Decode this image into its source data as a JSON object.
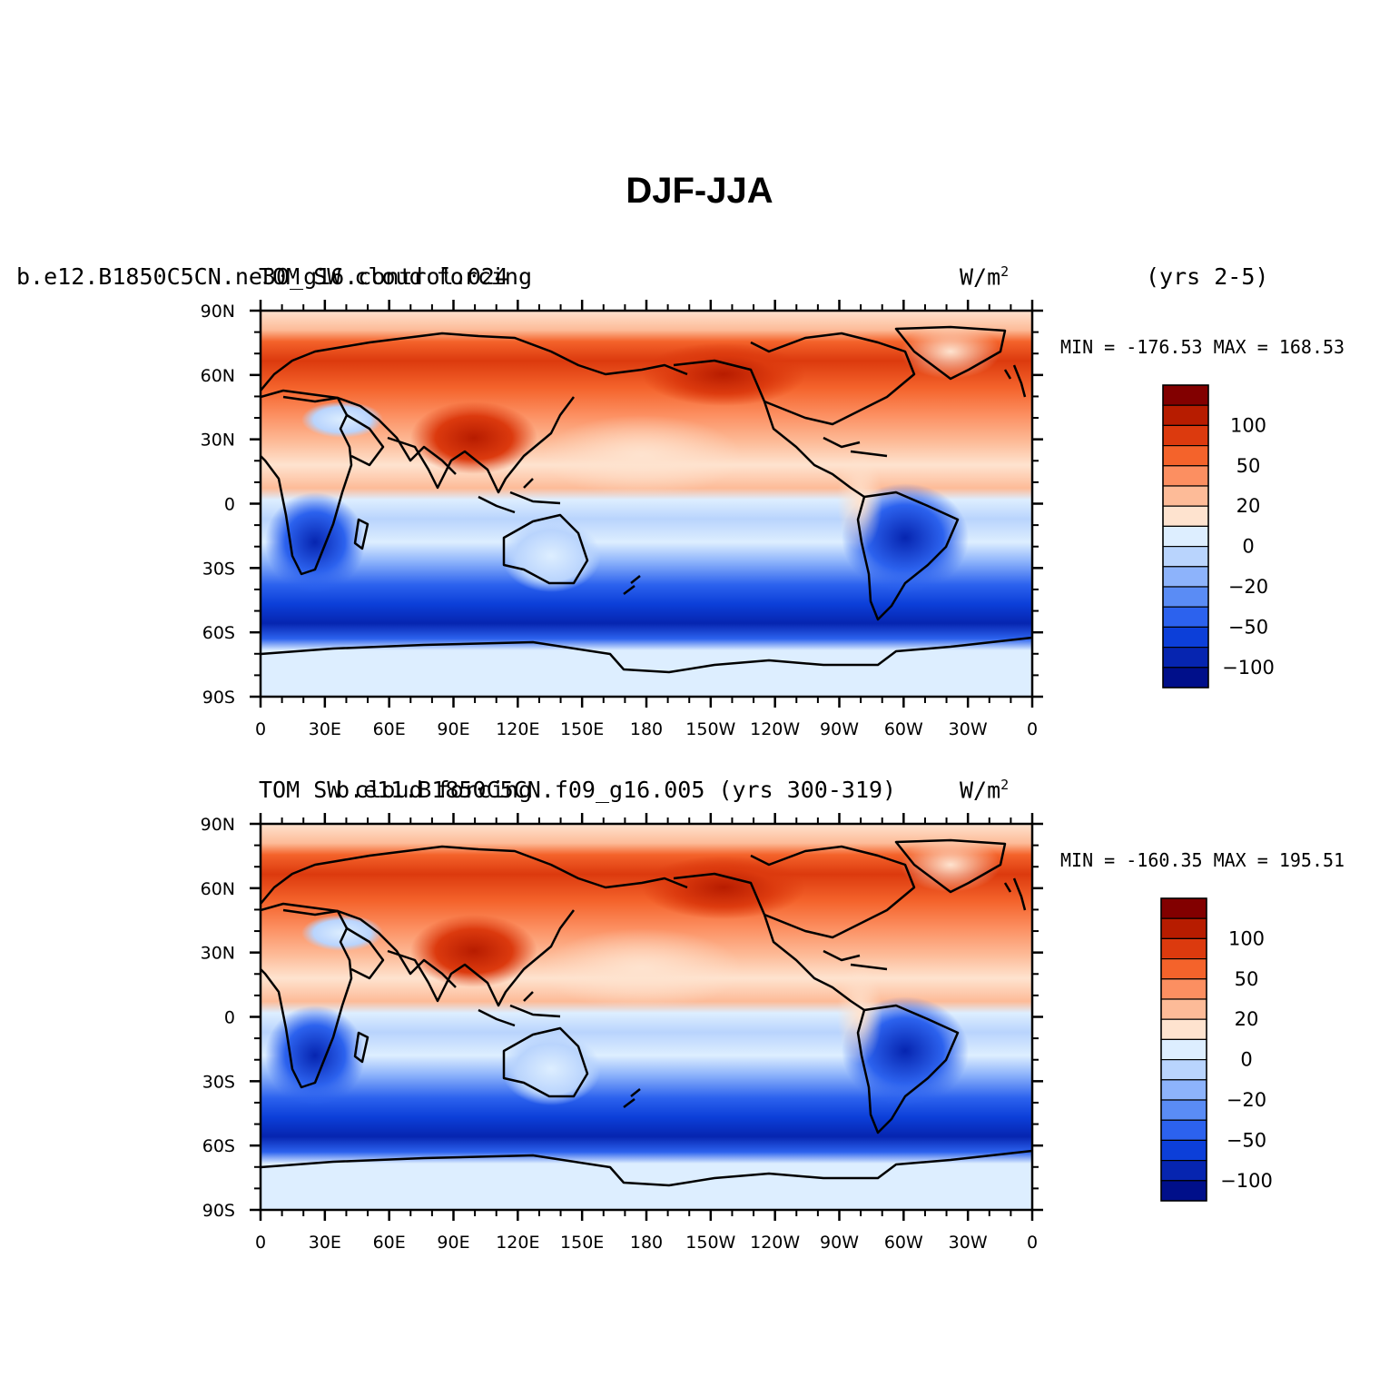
{
  "title": "DJF-JJA",
  "panels": [
    {
      "left_title": "b.e12.B1850C5CN.ne30_g16.control.024",
      "center_title": "TOM SW cloud forcing",
      "units": "W/m",
      "units_sup": "2",
      "years": "(yrs 2-5)",
      "stats": "MIN = -176.53  MAX = 168.53",
      "min": -176.53,
      "max": 168.53
    },
    {
      "left_title": "b.e11.B1850C5CN.f09_g16.005 (yrs 300-319)",
      "center_title": "TOM SW cloud forcing",
      "units": "W/m",
      "units_sup": "2",
      "years": "",
      "stats": "MIN = -160.35  MAX = 195.51",
      "min": -160.35,
      "max": 195.51
    }
  ],
  "map": {
    "lat_ticks": [
      "90N",
      "60N",
      "30N",
      "0",
      "30S",
      "60S",
      "90S"
    ],
    "lon_ticks": [
      "0",
      "30E",
      "60E",
      "90E",
      "120E",
      "150E",
      "180",
      "150W",
      "120W",
      "90W",
      "60W",
      "30W",
      "0"
    ]
  },
  "colorbar": {
    "colors": [
      "#820000",
      "#b71c00",
      "#dc3a0e",
      "#f4632b",
      "#fc8f61",
      "#fdbb98",
      "#fee3cf",
      "#ddeeff",
      "#b9d4fd",
      "#8db3fb",
      "#5a8cf5",
      "#2c62ee",
      "#0c3fd9",
      "#0625b0",
      "#000f8a"
    ],
    "labels": [
      "100",
      "50",
      "20",
      "0",
      "−20",
      "−50",
      "−100"
    ]
  },
  "chart_data": {
    "type": "heatmap",
    "title": "DJF-JJA",
    "variable": "TOM SW cloud forcing",
    "units": "W/m2",
    "x": [
      "0",
      "30E",
      "60E",
      "90E",
      "120E",
      "150E",
      "180",
      "150W",
      "120W",
      "90W",
      "60W",
      "30W",
      "0"
    ],
    "y": [
      "90N",
      "60N",
      "30N",
      "0",
      "30S",
      "60S",
      "90S"
    ],
    "levels": [
      -150,
      -125,
      -100,
      -75,
      -50,
      -35,
      -20,
      -10,
      0,
      10,
      20,
      35,
      50,
      75,
      100,
      125,
      150
    ],
    "panels": [
      {
        "case": "b.e12.B1850C5CN.ne30_g16.control.024",
        "years": "(yrs 2-5)",
        "min": -176.53,
        "max": 168.53
      },
      {
        "case": "b.e11.B1850C5CN.f09_g16.005",
        "years": "(yrs 300-319)",
        "min": -160.35,
        "max": 195.51
      }
    ]
  }
}
